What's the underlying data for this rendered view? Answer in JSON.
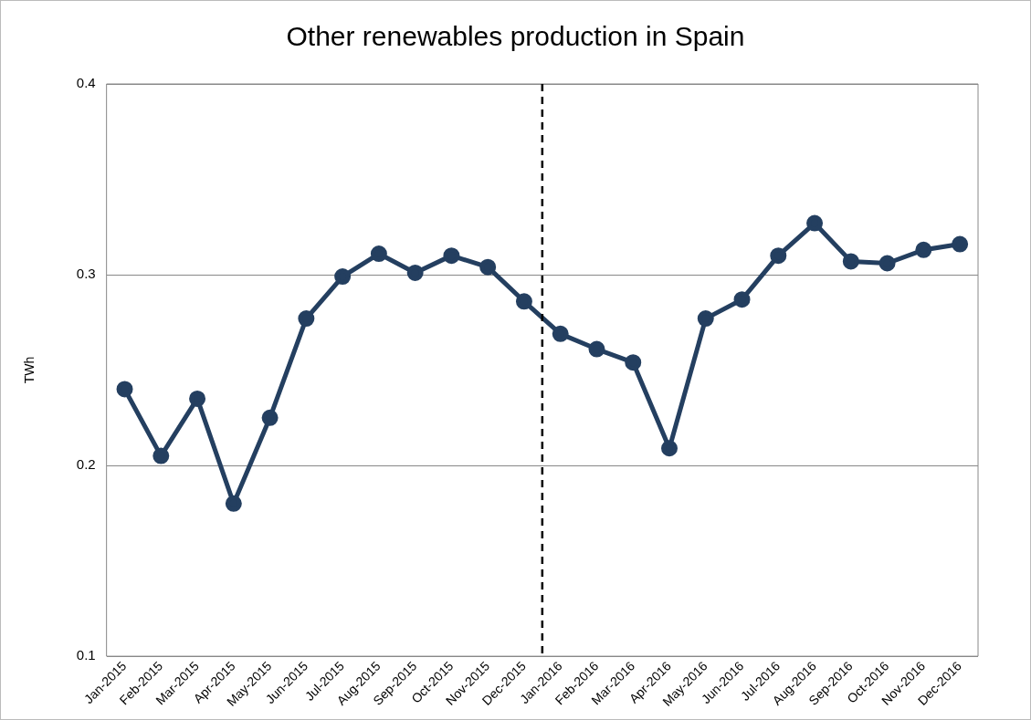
{
  "chart_data": {
    "type": "line",
    "title": "Other renewables production in Spain",
    "ylabel": "TWh",
    "categories": [
      "Jan-2015",
      "Feb-2015",
      "Mar-2015",
      "Apr-2015",
      "May-2015",
      "Jun-2015",
      "Jul-2015",
      "Aug-2015",
      "Sep-2015",
      "Oct-2015",
      "Nov-2015",
      "Dec-2015",
      "Jan-2016",
      "Feb-2016",
      "Mar-2016",
      "Apr-2016",
      "May-2016",
      "Jun-2016",
      "Jul-2016",
      "Aug-2016",
      "Sep-2016",
      "Oct-2016",
      "Nov-2016",
      "Dec-2016"
    ],
    "series": [
      {
        "color": "#243f60",
        "values": [
          0.24,
          0.205,
          0.235,
          0.18,
          0.225,
          0.277,
          0.299,
          0.311,
          0.301,
          0.31,
          0.304,
          0.286,
          0.269,
          0.261,
          0.254,
          0.209,
          0.277,
          0.287,
          0.31,
          0.327,
          0.307,
          0.306,
          0.313,
          0.316
        ]
      }
    ],
    "ylim": [
      0.1,
      0.4
    ],
    "yticks": [
      0.1,
      0.2,
      0.3,
      0.4
    ],
    "grid": "y",
    "legend": false,
    "marker": "circle",
    "line_style": "solid",
    "ref_lines": [
      {
        "axis": "x",
        "value": "Dec-2015",
        "color": "#000000",
        "line_style": "dashed"
      }
    ]
  }
}
